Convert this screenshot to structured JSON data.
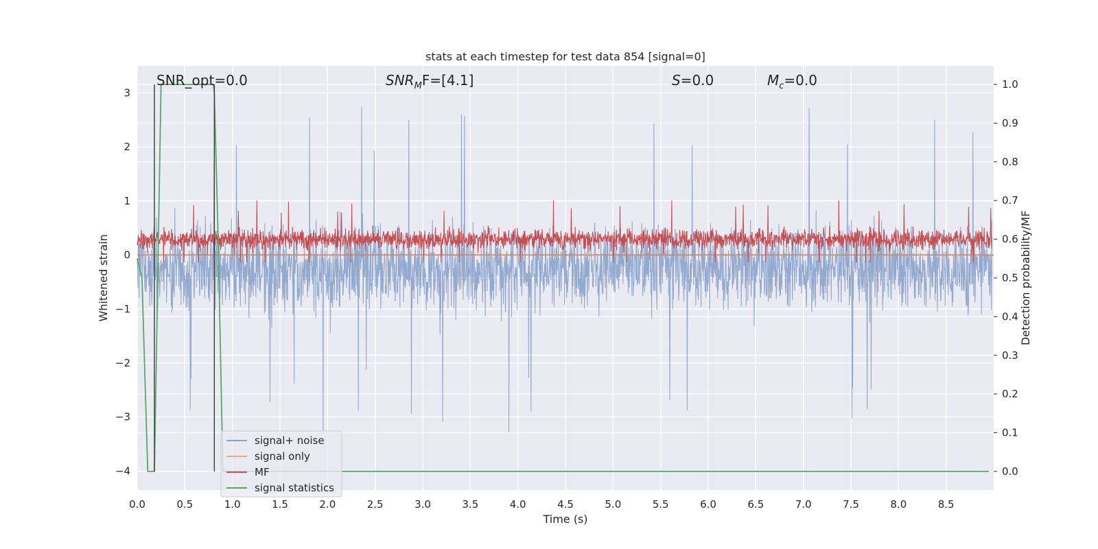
{
  "chart_data": {
    "type": "line",
    "title": "stats at each timestep for test data 854 [signal=0]",
    "xlabel": "Time (s)",
    "ylabel": "Whitened strain",
    "ylabel_right": "Detection probability/MF",
    "xlim": [
      0.0,
      9.0
    ],
    "ylim": [
      -4.35,
      3.5
    ],
    "ylim_right": [
      -0.048,
      1.048
    ],
    "x_ticks": [
      "0.0",
      "0.5",
      "1.0",
      "1.5",
      "2.0",
      "2.5",
      "3.0",
      "3.5",
      "4.0",
      "4.5",
      "5.0",
      "5.5",
      "6.0",
      "6.5",
      "7.0",
      "7.5",
      "8.0",
      "8.5"
    ],
    "y_ticks": [
      "3",
      "2",
      "1",
      "0",
      "−1",
      "−2",
      "−3",
      "−4"
    ],
    "y_ticks_right": [
      "1.0",
      "0.9",
      "0.8",
      "0.7",
      "0.6",
      "0.5",
      "0.4",
      "0.3",
      "0.2",
      "0.1",
      "0.0"
    ],
    "grid": true,
    "legend_position": "lower-left",
    "annotations": {
      "snr_opt": "SNR_opt=0.0",
      "snr_mf_base": "SNR",
      "snr_mf_sub": "M",
      "snr_mf_rest": "F=[4.1]",
      "s_label": "S",
      "s_value": "=0.0",
      "mc_base": "M",
      "mc_sub": "c",
      "mc_value": "=0.0"
    },
    "vertical_markers": [
      0.18,
      0.81
    ],
    "series": [
      {
        "name": "signal+ noise",
        "axis": "left",
        "color": "#4c72b0",
        "kind": "noise",
        "mean": -0.25,
        "spread": 0.85,
        "min": -4.0,
        "max": 3.15
      },
      {
        "name": "signal only",
        "axis": "left",
        "color": "#dd8452",
        "x": [
          0.0,
          9.0
        ],
        "y": [
          0.0,
          0.0
        ]
      },
      {
        "name": "MF",
        "axis": "right",
        "color": "#c44e52",
        "kind": "noise",
        "mean": 0.6,
        "spread": 0.03,
        "min": 0.54,
        "max": 0.7
      },
      {
        "name": "signal statistics",
        "axis": "right",
        "color": "#55a868",
        "x": [
          0.0,
          0.05,
          0.11,
          0.18,
          0.25,
          0.3,
          0.5,
          0.8,
          0.81,
          0.85,
          0.9,
          1.5,
          3.0,
          5.0,
          7.0,
          8.95
        ],
        "y": [
          0.55,
          0.5,
          0.0,
          0.0,
          1.0,
          1.0,
          1.0,
          1.0,
          0.98,
          0.6,
          0.0,
          0.0,
          0.0,
          0.0,
          0.0,
          0.0
        ]
      }
    ],
    "colors": {
      "plot_background": "#eaeaf2",
      "grid": "#ffffff",
      "marker": "#444444"
    }
  }
}
